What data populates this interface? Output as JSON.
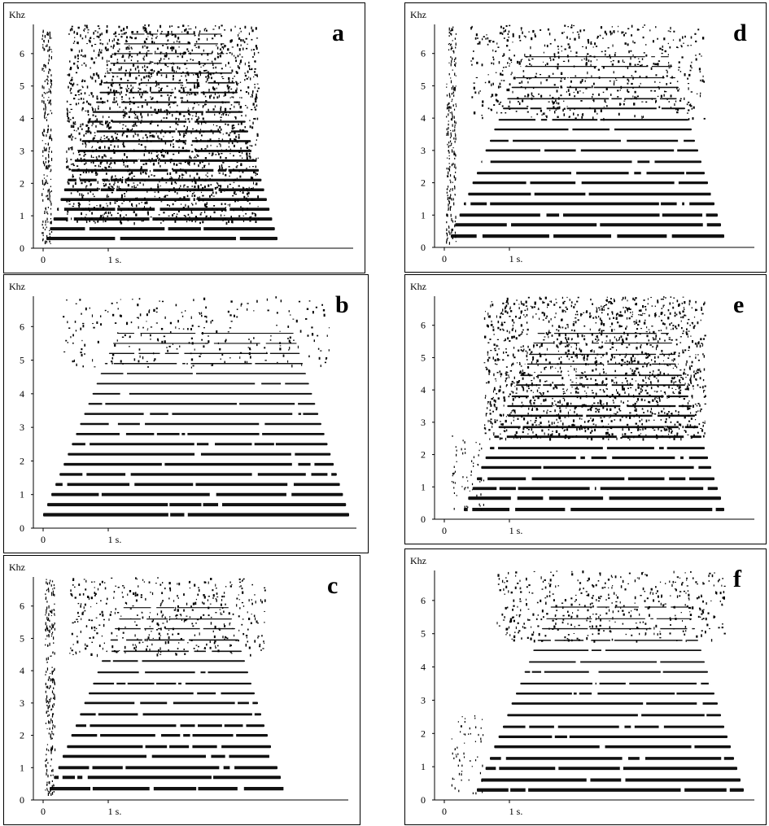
{
  "chart_data": [
    {
      "type": "heatmap",
      "panel_label": "a",
      "y_unit": "Khz",
      "y_ticks": [
        "0",
        "1",
        "2",
        "3",
        "4",
        "5",
        "6"
      ],
      "x_ticks": [
        "0",
        "1 s."
      ],
      "ylim": [
        0,
        7
      ],
      "harmonics_khz": [
        0.3,
        0.6,
        0.9,
        1.2,
        1.5,
        1.8,
        2.1,
        2.4,
        2.7,
        3.0,
        3.3,
        3.6,
        3.9,
        4.2,
        4.5,
        4.8,
        5.1,
        5.4,
        5.7,
        6.0,
        6.3,
        6.6
      ],
      "onset_s": 0.05,
      "offset_s": 3.6,
      "noise_from_khz": 0.8,
      "noise_density": "dense"
    },
    {
      "type": "heatmap",
      "panel_label": "b",
      "y_unit": "Khz",
      "y_ticks": [
        "0",
        "1",
        "2",
        "3",
        "4",
        "5",
        "6"
      ],
      "x_ticks": [
        "0",
        "1 s."
      ],
      "ylim": [
        0,
        7
      ],
      "harmonics_khz": [
        0.4,
        0.7,
        1.0,
        1.3,
        1.6,
        1.9,
        2.2,
        2.5,
        2.8,
        3.1,
        3.4,
        3.7,
        4.0,
        4.3,
        4.6,
        4.9,
        5.2,
        5.5,
        5.8
      ],
      "onset_s": 0.0,
      "offset_s": 4.7,
      "noise_from_khz": 4.8,
      "noise_density": "light"
    },
    {
      "type": "heatmap",
      "panel_label": "c",
      "y_unit": "Khz",
      "y_ticks": [
        "0",
        "1",
        "2",
        "3",
        "4",
        "5",
        "6"
      ],
      "x_ticks": [
        "0",
        "1 s."
      ],
      "ylim": [
        0,
        7
      ],
      "harmonics_khz": [
        0.35,
        0.7,
        1.0,
        1.35,
        1.65,
        2.0,
        2.3,
        2.65,
        3.0,
        3.3,
        3.6,
        3.95,
        4.3,
        4.6,
        4.95,
        5.3,
        5.6,
        5.95
      ],
      "onset_s": 0.1,
      "offset_s": 3.7,
      "noise_from_khz": 4.5,
      "noise_density": "medium"
    },
    {
      "type": "heatmap",
      "panel_label": "d",
      "y_unit": "Khz",
      "y_ticks": [
        "0",
        "1",
        "2",
        "3",
        "4",
        "5",
        "6"
      ],
      "x_ticks": [
        "0",
        "1 s."
      ],
      "ylim": [
        0,
        7
      ],
      "harmonics_khz": [
        0.35,
        0.7,
        1.0,
        1.35,
        1.65,
        2.0,
        2.3,
        2.65,
        3.0,
        3.3,
        3.65,
        3.95,
        4.3,
        4.6,
        4.95,
        5.25,
        5.6,
        5.9
      ],
      "onset_s": 0.1,
      "offset_s": 4.3,
      "noise_from_khz": 4.0,
      "noise_density": "medium"
    },
    {
      "type": "heatmap",
      "panel_label": "e",
      "y_unit": "Khz",
      "y_ticks": [
        "0",
        "1",
        "2",
        "3",
        "4",
        "5",
        "6"
      ],
      "x_ticks": [
        "0",
        "1 s."
      ],
      "ylim": [
        0,
        7
      ],
      "harmonics_khz": [
        0.3,
        0.65,
        0.95,
        1.25,
        1.6,
        1.9,
        2.2,
        2.55,
        2.85,
        3.2,
        3.5,
        3.8,
        4.15,
        4.45,
        4.8,
        5.1,
        5.45,
        5.75
      ],
      "onset_s": 0.3,
      "offset_s": 4.3,
      "noise_from_khz": 2.5,
      "noise_density": "dense"
    },
    {
      "type": "heatmap",
      "panel_label": "f",
      "y_unit": "Khz",
      "y_ticks": [
        "0",
        "1",
        "2",
        "3",
        "4",
        "5",
        "6"
      ],
      "x_ticks": [
        "0",
        "1 s."
      ],
      "ylim": [
        0,
        7
      ],
      "harmonics_khz": [
        0.3,
        0.6,
        0.95,
        1.25,
        1.6,
        1.9,
        2.2,
        2.55,
        2.9,
        3.2,
        3.5,
        3.85,
        4.15,
        4.5,
        4.8,
        5.15,
        5.45,
        5.8
      ],
      "onset_s": 0.5,
      "offset_s": 4.6,
      "noise_from_khz": 4.8,
      "noise_density": "medium"
    }
  ]
}
